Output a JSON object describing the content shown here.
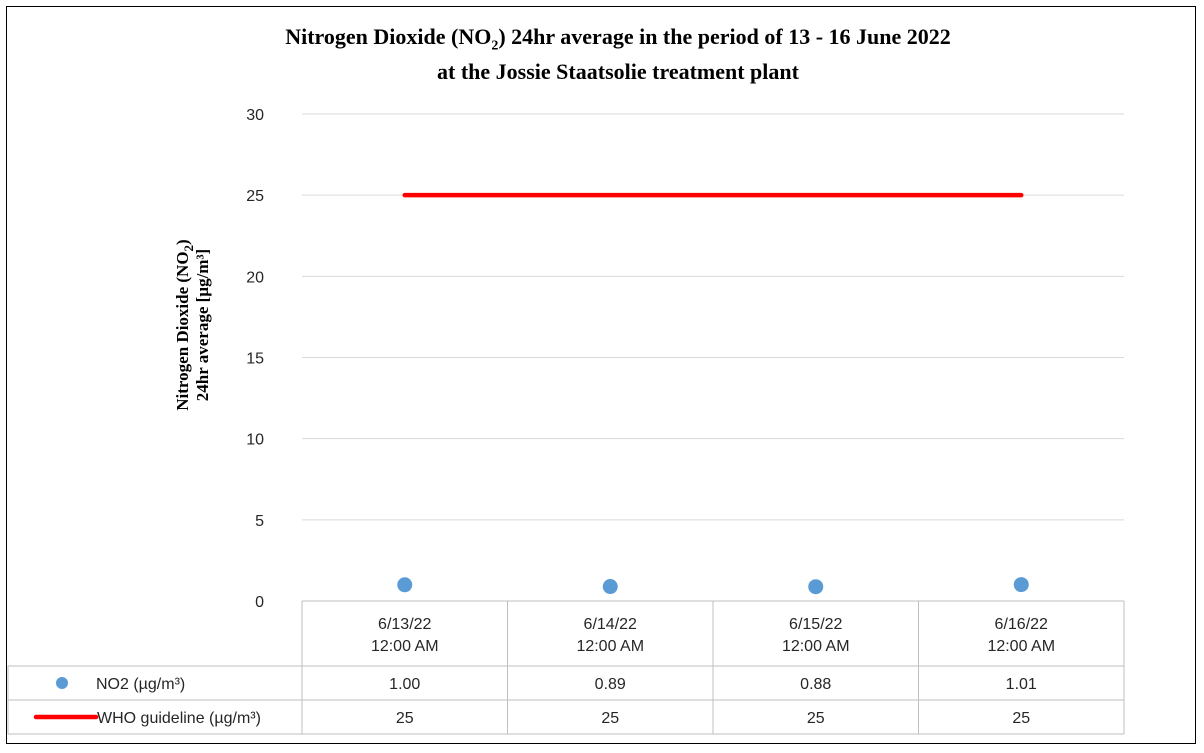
{
  "chart_data": {
    "type": "line",
    "title_line1_pre": "Nitrogen Dioxide (NO",
    "title_line1_sub": "2",
    "title_line1_post": ") 24hr average in the period of 13 - 16 June 2022",
    "title_line2": "at the Jossie Staatsolie treatment plant",
    "ylabel_line1_pre": "Nitrogen Dioxide (NO",
    "ylabel_line1_sub": "2",
    "ylabel_line1_post": ")",
    "ylabel_line2": "24hr average [µg/m³]",
    "ylim": [
      0,
      30
    ],
    "y_ticks": [
      "0",
      "5",
      "10",
      "15",
      "20",
      "25",
      "30"
    ],
    "grid": true,
    "categories": [
      [
        "6/13/22",
        "12:00 AM"
      ],
      [
        "6/14/22",
        "12:00 AM"
      ],
      [
        "6/15/22",
        "12:00 AM"
      ],
      [
        "6/16/22",
        "12:00 AM"
      ]
    ],
    "series": [
      {
        "name": "NO2 (µg/m³)",
        "kind": "scatter",
        "color": "#5B9BD5",
        "values": [
          1.0,
          0.89,
          0.88,
          1.01
        ],
        "labels": [
          "1.00",
          "0.89",
          "0.88",
          "1.01"
        ]
      },
      {
        "name": "WHO guideline (µg/m³)",
        "kind": "line",
        "color": "#FF0000",
        "values": [
          25,
          25,
          25,
          25
        ],
        "labels": [
          "25",
          "25",
          "25",
          "25"
        ]
      }
    ],
    "legend": "data-table"
  }
}
